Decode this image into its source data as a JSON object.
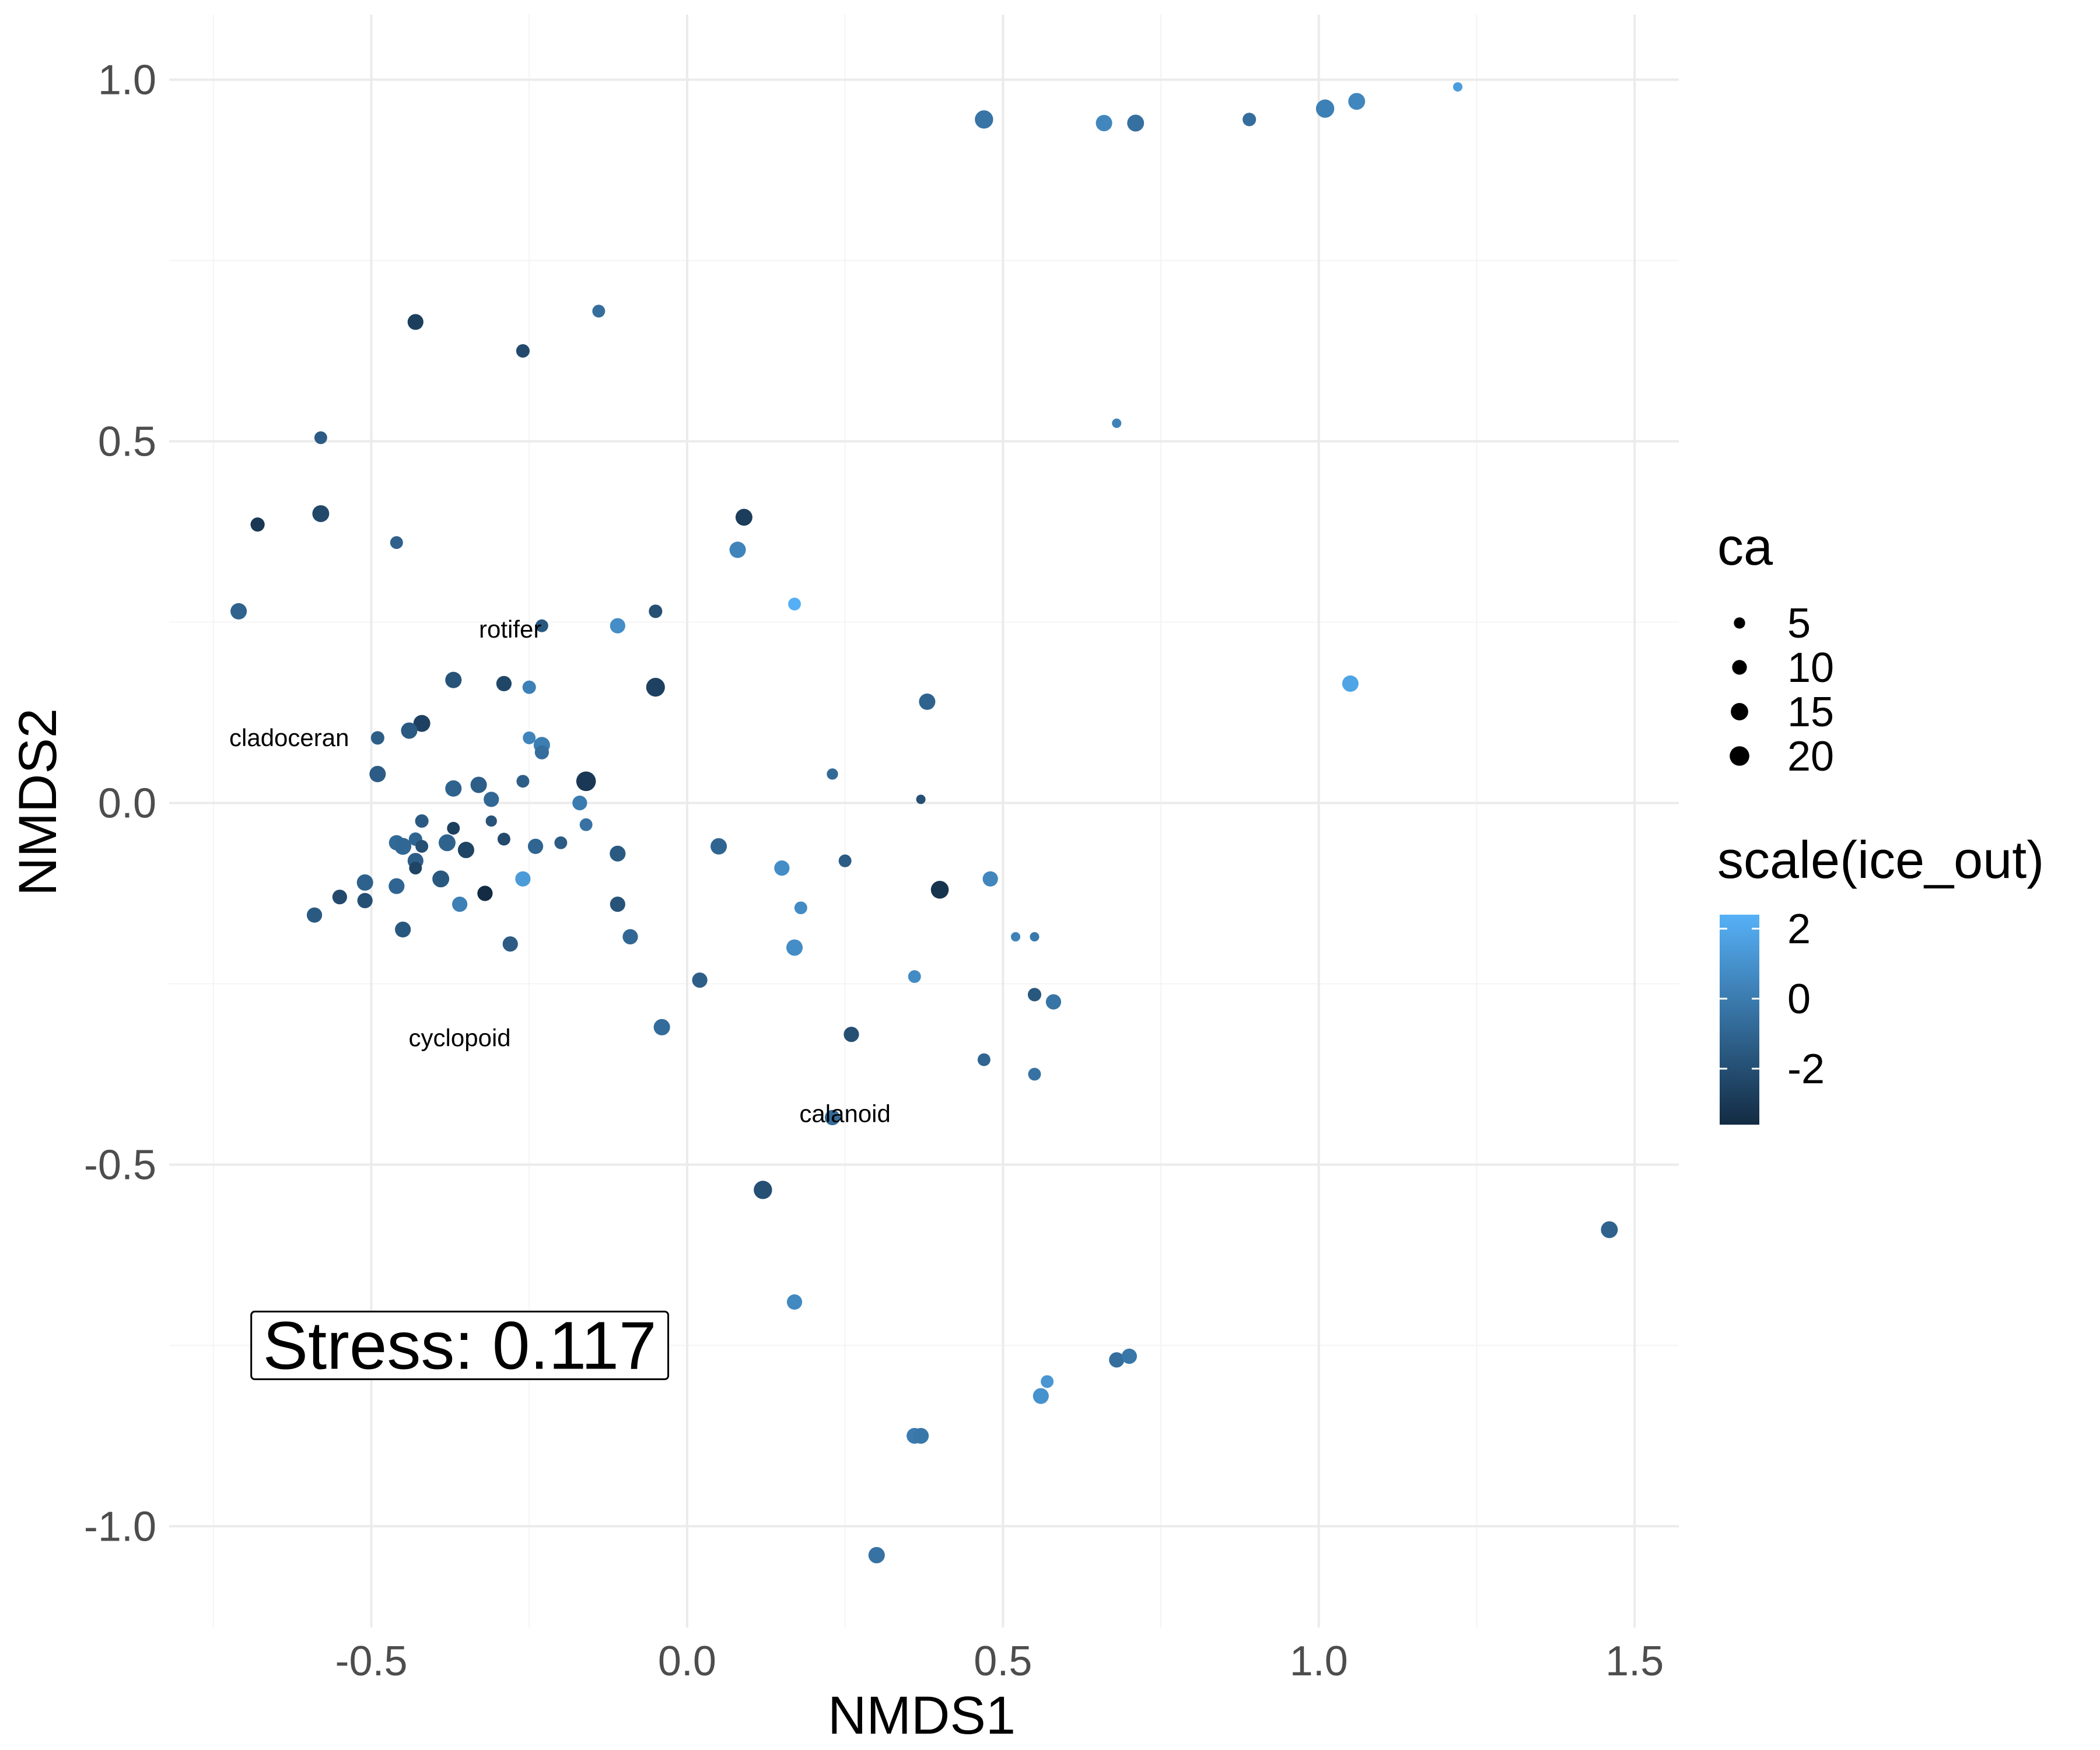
{
  "chart_data": {
    "type": "scatter",
    "xlabel": "NMDS1",
    "ylabel": "NMDS2",
    "xlim": [
      -0.82,
      1.57
    ],
    "ylim": [
      -1.14,
      1.09
    ],
    "x_ticks": [
      -0.5,
      0.0,
      0.5,
      1.0,
      1.5
    ],
    "x_tick_labels": [
      "-0.5",
      "0.0",
      "0.5",
      "1.0",
      "1.5"
    ],
    "y_ticks": [
      -1.0,
      -0.5,
      0.0,
      0.5,
      1.0
    ],
    "y_tick_labels": [
      "-1.0",
      "-0.5",
      "0.0",
      "0.5",
      "1.0"
    ],
    "grid": true,
    "size_legend": {
      "title": "ca",
      "entries": [
        {
          "label": "5",
          "value": 5
        },
        {
          "label": "10",
          "value": 10
        },
        {
          "label": "15",
          "value": 15
        },
        {
          "label": "20",
          "value": 20
        }
      ]
    },
    "color_legend": {
      "title": "scale(ice_out)",
      "range": [
        -3.6,
        2.4
      ],
      "ticks": [
        2,
        0,
        -2
      ],
      "tick_labels": [
        "2",
        "0",
        "-2"
      ],
      "low_color": "#132B43",
      "high_color": "#56B1F7"
    },
    "legend_position": "right",
    "species_labels": [
      {
        "text": "rotifer",
        "x": -0.28,
        "y": 0.24
      },
      {
        "text": "cladoceran",
        "x": -0.63,
        "y": 0.09
      },
      {
        "text": "cyclopoid",
        "x": -0.36,
        "y": -0.325
      },
      {
        "text": "calanoid",
        "x": 0.25,
        "y": -0.43
      }
    ],
    "stress_label": "Stress:  0.117",
    "stress_position": {
      "x": -0.36,
      "y": -0.75
    },
    "points": [
      {
        "x": 0.47,
        "y": 0.945,
        "ca": 17,
        "ice_out": -0.3
      },
      {
        "x": 0.66,
        "y": 0.94,
        "ca": 13,
        "ice_out": 0.5
      },
      {
        "x": 0.71,
        "y": 0.94,
        "ca": 14,
        "ice_out": -0.5
      },
      {
        "x": 0.89,
        "y": 0.945,
        "ca": 8,
        "ice_out": -0.6
      },
      {
        "x": 1.01,
        "y": 0.96,
        "ca": 17,
        "ice_out": 0.2
      },
      {
        "x": 1.06,
        "y": 0.97,
        "ca": 14,
        "ice_out": 0.5
      },
      {
        "x": 1.22,
        "y": 0.99,
        "ca": 3,
        "ice_out": 1.5
      },
      {
        "x": -0.43,
        "y": 0.665,
        "ca": 12,
        "ice_out": -2.7
      },
      {
        "x": -0.26,
        "y": 0.625,
        "ca": 8,
        "ice_out": -2.2
      },
      {
        "x": -0.14,
        "y": 0.68,
        "ca": 7,
        "ice_out": -0.6
      },
      {
        "x": 0.68,
        "y": 0.525,
        "ca": 3,
        "ice_out": 0.3
      },
      {
        "x": -0.58,
        "y": 0.505,
        "ca": 7,
        "ice_out": -1.4
      },
      {
        "x": -0.68,
        "y": 0.385,
        "ca": 9,
        "ice_out": -3.0
      },
      {
        "x": -0.58,
        "y": 0.4,
        "ca": 14,
        "ice_out": -2.3
      },
      {
        "x": -0.46,
        "y": 0.36,
        "ca": 7,
        "ice_out": -1.2
      },
      {
        "x": 0.09,
        "y": 0.395,
        "ca": 14,
        "ice_out": -2.8
      },
      {
        "x": 0.08,
        "y": 0.35,
        "ca": 13,
        "ice_out": 0.4
      },
      {
        "x": 0.17,
        "y": 0.275,
        "ca": 7,
        "ice_out": 2.3
      },
      {
        "x": -0.71,
        "y": 0.265,
        "ca": 13,
        "ice_out": -1.1
      },
      {
        "x": -0.05,
        "y": 0.265,
        "ca": 8,
        "ice_out": -2.0
      },
      {
        "x": -0.11,
        "y": 0.245,
        "ca": 11,
        "ice_out": 0.8
      },
      {
        "x": -0.23,
        "y": 0.245,
        "ca": 7,
        "ice_out": -1.6
      },
      {
        "x": -0.37,
        "y": 0.17,
        "ca": 13,
        "ice_out": -1.8
      },
      {
        "x": -0.29,
        "y": 0.165,
        "ca": 11,
        "ice_out": -2.4
      },
      {
        "x": -0.25,
        "y": 0.16,
        "ca": 8,
        "ice_out": 0.2
      },
      {
        "x": -0.05,
        "y": 0.16,
        "ca": 18,
        "ice_out": -2.6
      },
      {
        "x": 0.38,
        "y": 0.14,
        "ca": 13,
        "ice_out": -1.1
      },
      {
        "x": 1.05,
        "y": 0.165,
        "ca": 13,
        "ice_out": 1.8
      },
      {
        "x": -0.42,
        "y": 0.11,
        "ca": 14,
        "ice_out": -2.6
      },
      {
        "x": -0.44,
        "y": 0.1,
        "ca": 13,
        "ice_out": -1.5
      },
      {
        "x": -0.49,
        "y": 0.09,
        "ca": 8,
        "ice_out": -1.3
      },
      {
        "x": -0.25,
        "y": 0.09,
        "ca": 7,
        "ice_out": 0.4
      },
      {
        "x": -0.23,
        "y": 0.08,
        "ca": 13,
        "ice_out": 0.1
      },
      {
        "x": -0.23,
        "y": 0.07,
        "ca": 9,
        "ice_out": -0.6
      },
      {
        "x": -0.16,
        "y": 0.03,
        "ca": 20,
        "ice_out": -3.0
      },
      {
        "x": -0.49,
        "y": 0.04,
        "ca": 13,
        "ice_out": -1.4
      },
      {
        "x": -0.37,
        "y": 0.02,
        "ca": 13,
        "ice_out": -1.1
      },
      {
        "x": -0.33,
        "y": 0.025,
        "ca": 13,
        "ice_out": -1.3
      },
      {
        "x": -0.26,
        "y": 0.03,
        "ca": 7,
        "ice_out": -1.3
      },
      {
        "x": 0.23,
        "y": 0.04,
        "ca": 5,
        "ice_out": -0.8
      },
      {
        "x": -0.31,
        "y": 0.005,
        "ca": 11,
        "ice_out": -0.9
      },
      {
        "x": -0.17,
        "y": 0.0,
        "ca": 10,
        "ice_out": 0.0
      },
      {
        "x": 0.37,
        "y": 0.005,
        "ca": 3,
        "ice_out": -2.0
      },
      {
        "x": -0.42,
        "y": -0.025,
        "ca": 8,
        "ice_out": -1.5
      },
      {
        "x": -0.31,
        "y": -0.025,
        "ca": 5,
        "ice_out": -1.8
      },
      {
        "x": -0.16,
        "y": -0.03,
        "ca": 7,
        "ice_out": -0.4
      },
      {
        "x": -0.37,
        "y": -0.035,
        "ca": 7,
        "ice_out": -2.7
      },
      {
        "x": -0.46,
        "y": -0.055,
        "ca": 11,
        "ice_out": -0.8
      },
      {
        "x": -0.43,
        "y": -0.05,
        "ca": 8,
        "ice_out": -1.0
      },
      {
        "x": -0.38,
        "y": -0.055,
        "ca": 14,
        "ice_out": -1.1
      },
      {
        "x": -0.29,
        "y": -0.05,
        "ca": 7,
        "ice_out": -2.2
      },
      {
        "x": -0.24,
        "y": -0.06,
        "ca": 11,
        "ice_out": -1.0
      },
      {
        "x": -0.2,
        "y": -0.055,
        "ca": 7,
        "ice_out": -1.4
      },
      {
        "x": -0.45,
        "y": -0.06,
        "ca": 14,
        "ice_out": -0.9
      },
      {
        "x": -0.35,
        "y": -0.065,
        "ca": 13,
        "ice_out": -2.5
      },
      {
        "x": -0.42,
        "y": -0.06,
        "ca": 7,
        "ice_out": -2.0
      },
      {
        "x": -0.11,
        "y": -0.07,
        "ca": 12,
        "ice_out": -1.5
      },
      {
        "x": 0.05,
        "y": -0.06,
        "ca": 13,
        "ice_out": -1.0
      },
      {
        "x": 0.25,
        "y": -0.08,
        "ca": 7,
        "ice_out": -1.4
      },
      {
        "x": -0.43,
        "y": -0.08,
        "ca": 12,
        "ice_out": -1.3
      },
      {
        "x": -0.43,
        "y": -0.09,
        "ca": 7,
        "ice_out": -2.5
      },
      {
        "x": 0.15,
        "y": -0.09,
        "ca": 11,
        "ice_out": 0.8
      },
      {
        "x": -0.51,
        "y": -0.11,
        "ca": 13,
        "ice_out": -1.2
      },
      {
        "x": -0.46,
        "y": -0.115,
        "ca": 12,
        "ice_out": -1.0
      },
      {
        "x": -0.39,
        "y": -0.105,
        "ca": 14,
        "ice_out": -1.6
      },
      {
        "x": -0.26,
        "y": -0.105,
        "ca": 11,
        "ice_out": 1.4
      },
      {
        "x": 0.48,
        "y": -0.105,
        "ca": 11,
        "ice_out": 0.5
      },
      {
        "x": 0.4,
        "y": -0.12,
        "ca": 16,
        "ice_out": -3.2
      },
      {
        "x": -0.32,
        "y": -0.125,
        "ca": 11,
        "ice_out": -3.6
      },
      {
        "x": -0.55,
        "y": -0.13,
        "ca": 10,
        "ice_out": -2.2
      },
      {
        "x": -0.51,
        "y": -0.135,
        "ca": 11,
        "ice_out": -2.0
      },
      {
        "x": -0.36,
        "y": -0.14,
        "ca": 11,
        "ice_out": 0.2
      },
      {
        "x": -0.11,
        "y": -0.14,
        "ca": 11,
        "ice_out": -1.8
      },
      {
        "x": 0.18,
        "y": -0.145,
        "ca": 7,
        "ice_out": 0.7
      },
      {
        "x": -0.59,
        "y": -0.155,
        "ca": 11,
        "ice_out": -1.5
      },
      {
        "x": -0.45,
        "y": -0.175,
        "ca": 12,
        "ice_out": -1.6
      },
      {
        "x": -0.09,
        "y": -0.185,
        "ca": 11,
        "ice_out": -0.9
      },
      {
        "x": 0.52,
        "y": -0.185,
        "ca": 3,
        "ice_out": 0.3
      },
      {
        "x": 0.55,
        "y": -0.185,
        "ca": 3,
        "ice_out": -0.1
      },
      {
        "x": -0.28,
        "y": -0.195,
        "ca": 11,
        "ice_out": -1.4
      },
      {
        "x": 0.17,
        "y": -0.2,
        "ca": 13,
        "ice_out": 0.8
      },
      {
        "x": 0.02,
        "y": -0.245,
        "ca": 11,
        "ice_out": -1.3
      },
      {
        "x": 0.36,
        "y": -0.24,
        "ca": 7,
        "ice_out": 0.7
      },
      {
        "x": 0.55,
        "y": -0.265,
        "ca": 8,
        "ice_out": -1.6
      },
      {
        "x": 0.58,
        "y": -0.275,
        "ca": 11,
        "ice_out": -0.3
      },
      {
        "x": -0.04,
        "y": -0.31,
        "ca": 13,
        "ice_out": -0.7
      },
      {
        "x": 0.26,
        "y": -0.32,
        "ca": 11,
        "ice_out": -2.0
      },
      {
        "x": 0.47,
        "y": -0.355,
        "ca": 7,
        "ice_out": -1.0
      },
      {
        "x": 0.55,
        "y": -0.375,
        "ca": 7,
        "ice_out": -0.4
      },
      {
        "x": 0.23,
        "y": -0.435,
        "ca": 11,
        "ice_out": -0.7
      },
      {
        "x": 0.12,
        "y": -0.535,
        "ca": 17,
        "ice_out": -2.0
      },
      {
        "x": 1.46,
        "y": -0.59,
        "ca": 14,
        "ice_out": -1.1
      },
      {
        "x": 0.17,
        "y": -0.69,
        "ca": 11,
        "ice_out": 0.6
      },
      {
        "x": 0.68,
        "y": -0.77,
        "ca": 11,
        "ice_out": -0.6
      },
      {
        "x": 0.7,
        "y": -0.765,
        "ca": 11,
        "ice_out": -0.2
      },
      {
        "x": 0.57,
        "y": -0.8,
        "ca": 7,
        "ice_out": 1.2
      },
      {
        "x": 0.56,
        "y": -0.82,
        "ca": 12,
        "ice_out": 1.0
      },
      {
        "x": 0.36,
        "y": -0.875,
        "ca": 12,
        "ice_out": 0.0
      },
      {
        "x": 0.37,
        "y": -0.875,
        "ca": 12,
        "ice_out": -0.2
      },
      {
        "x": 0.3,
        "y": -1.04,
        "ca": 13,
        "ice_out": -0.4
      }
    ]
  }
}
